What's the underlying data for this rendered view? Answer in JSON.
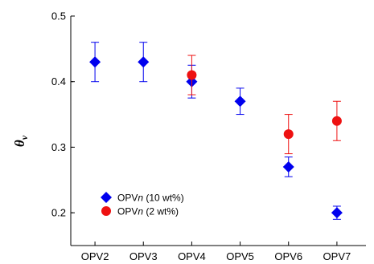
{
  "chart_data": {
    "type": "scatter",
    "categories": [
      "OPV2",
      "OPV3",
      "OPV4",
      "OPV5",
      "OPV6",
      "OPV7"
    ],
    "ylim": [
      0.15,
      0.5
    ],
    "yticks": [
      "0.2",
      "0.3",
      "0.4",
      "0.5"
    ],
    "ylabel_main": "θ",
    "ylabel_sub": "v",
    "xlabel": "",
    "title": "",
    "grid": false,
    "legend_position": "bottom-left",
    "series": [
      {
        "name_prefix": "OPV",
        "name_italic": "n",
        "name_suffix": " (10 wt%)",
        "marker": "diamond",
        "color": "#0000ee",
        "points": [
          {
            "x": "OPV2",
            "y": 0.43,
            "err": 0.03
          },
          {
            "x": "OPV3",
            "y": 0.43,
            "err": 0.03
          },
          {
            "x": "OPV4",
            "y": 0.4,
            "err": 0.025
          },
          {
            "x": "OPV5",
            "y": 0.37,
            "err": 0.02
          },
          {
            "x": "OPV6",
            "y": 0.27,
            "err": 0.015
          },
          {
            "x": "OPV7",
            "y": 0.2,
            "err": 0.01
          }
        ]
      },
      {
        "name_prefix": "OPV",
        "name_italic": "n",
        "name_suffix": " (2 wt%)",
        "marker": "circle",
        "color": "#ee1111",
        "points": [
          {
            "x": "OPV4",
            "y": 0.41,
            "err": 0.03
          },
          {
            "x": "OPV6",
            "y": 0.32,
            "err": 0.03
          },
          {
            "x": "OPV7",
            "y": 0.34,
            "err": 0.03
          }
        ]
      }
    ]
  }
}
